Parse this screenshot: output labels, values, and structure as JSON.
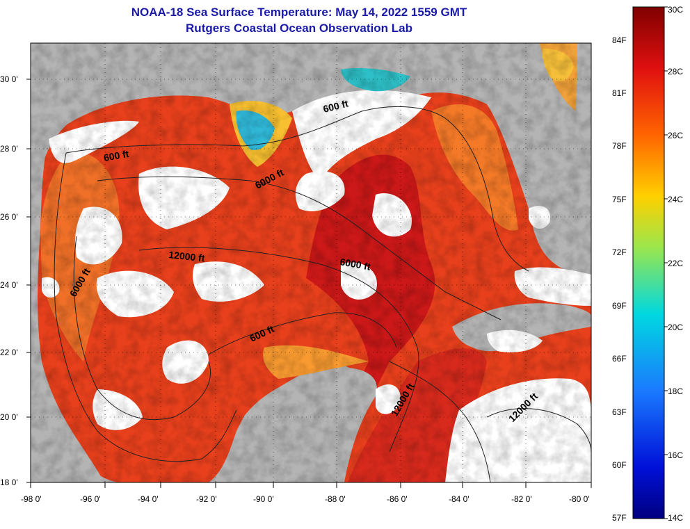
{
  "title": {
    "line1": "NOAA-18 Sea Surface Temperature:  May 14, 2022 1559 GMT",
    "line2": "Rutgers Coastal Ocean Observation Lab"
  },
  "map": {
    "lat_labels": [
      "30 0'",
      "28 0'",
      "26 0'",
      "24 0'",
      "22 0'",
      "20 0'",
      "18 0'"
    ],
    "lon_labels": [
      "-98 0'",
      "-96 0'",
      "-94 0'",
      "-92 0'",
      "-90 0'",
      "-88 0'",
      "-86 0'",
      "-84 0'",
      "-82 0'",
      "-80 0'"
    ],
    "contours": {
      "c1": "600 ft",
      "c2": "600 ft",
      "c3": "6000 ft",
      "c4": "12000 ft",
      "c5": "6000 ft",
      "c6": "6000 ft",
      "c7": "600 ft",
      "c8": "12000 ft",
      "c9": "12000 ft"
    },
    "colors": {
      "land": "#b4b4b4",
      "cloud": "#ffffff",
      "sea_warm": "#e8401c",
      "sea_hot": "#c8141c",
      "sea_mild": "#f07828",
      "sea_cool": "#f8b020"
    }
  },
  "colorbar": {
    "celsius": [
      "30C",
      "28C",
      "26C",
      "24C",
      "22C",
      "20C",
      "18C",
      "16C",
      "14C"
    ],
    "fahrenheit": [
      "84F",
      "81F",
      "78F",
      "75F",
      "72F",
      "69F",
      "66F",
      "63F",
      "60F",
      "57F"
    ]
  }
}
